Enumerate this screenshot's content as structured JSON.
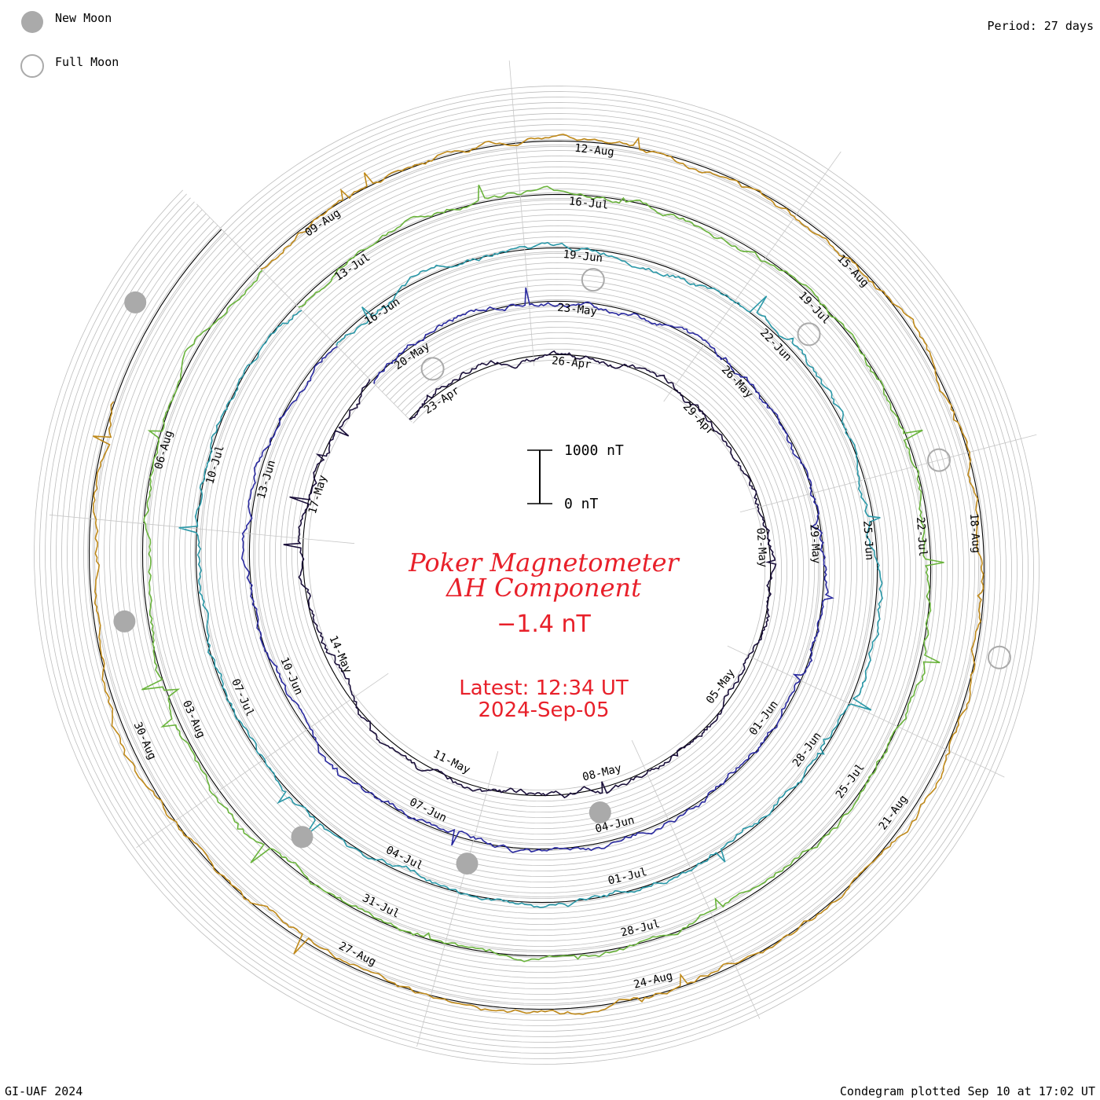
{
  "header": {
    "period_label": "Period: 27 days"
  },
  "legend": {
    "new_moon_label": "New Moon",
    "full_moon_label": "Full Moon",
    "new_moon_color": "#aaaaaa",
    "full_moon_color": "#aaaaaa"
  },
  "scale_bar": {
    "top_label": "1000 nT",
    "bottom_label": "0 nT"
  },
  "title": {
    "line1": "Poker Magnetometer",
    "line2": "ΔH Component",
    "value": "−1.4 nT",
    "latest": "Latest: 12:34 UT",
    "date": "2024-Sep-05",
    "color": "#e8202a"
  },
  "footer": {
    "left": "GI-UAF 2024",
    "right": "Condegram plotted Sep 10 at 17:02 UT"
  },
  "chart_data": {
    "type": "line",
    "subtype": "condegram (spiral time series)",
    "title": "Poker Magnetometer ΔH Component",
    "period_days": 27,
    "latest_value_nT": -1.4,
    "latest_time": "2024-Sep-05 12:34 UT",
    "scale_nT": [
      0,
      1000
    ],
    "grid": true,
    "series": [
      {
        "color": "#1a0f3a",
        "date_labels": [
          "23-Apr",
          "26-Apr",
          "29-Apr",
          "02-May",
          "05-May",
          "08-May",
          "11-May",
          "14-May",
          "17-May"
        ]
      },
      {
        "color": "#2a2aa0",
        "date_labels": [
          "20-May",
          "23-May",
          "26-May",
          "29-May",
          "01-Jun",
          "04-Jun",
          "07-Jun",
          "10-Jun",
          "13-Jun"
        ]
      },
      {
        "color": "#2a98a8",
        "date_labels": [
          "16-Jun",
          "19-Jun",
          "22-Jun",
          "25-Jun",
          "28-Jun",
          "01-Jul",
          "04-Jul",
          "07-Jul",
          "10-Jul"
        ]
      },
      {
        "color": "#6ab43c",
        "date_labels": [
          "13-Jul",
          "16-Jul",
          "19-Jul",
          "22-Jul",
          "25-Jul",
          "28-Jul",
          "31-Jul",
          "03-Aug",
          "06-Aug"
        ]
      },
      {
        "color": "#c08a1a",
        "date_labels": [
          "09-Aug",
          "12-Aug",
          "15-Aug",
          "18-Aug",
          "21-Aug",
          "24-Aug",
          "27-Aug",
          "30-Aug"
        ]
      }
    ],
    "new_moons": [
      "2024-May-08",
      "2024-Jun-06",
      "2024-Jul-05",
      "2024-Aug-04",
      "2024-Sep-03"
    ],
    "full_moons": [
      "2024-Apr-23",
      "2024-May-23",
      "2024-Jun-22",
      "2024-Jul-21",
      "2024-Aug-19"
    ]
  }
}
